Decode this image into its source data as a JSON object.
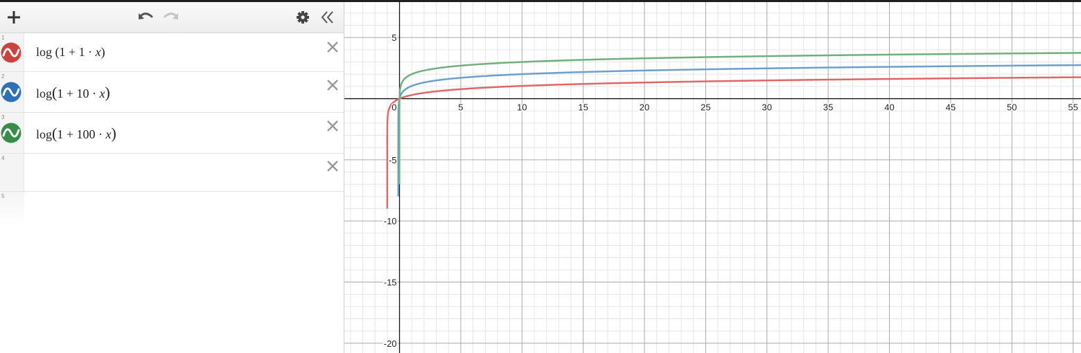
{
  "toolbar": {
    "add_icon": "plus-icon",
    "undo_icon": "undo-icon",
    "redo_icon": "redo-icon",
    "settings_icon": "gear-icon",
    "collapse_icon": "double-chevron-left-icon"
  },
  "expressions": [
    {
      "index": "1",
      "color": "#c74440",
      "func": "log",
      "left_paren": "(",
      "const": "1",
      "plus": "+",
      "coef": "1",
      "dot": "·",
      "var": "x",
      "right_paren": ")"
    },
    {
      "index": "2",
      "color": "#2d70b3",
      "func": "log",
      "left_paren": "(",
      "const": "1",
      "plus": "+",
      "coef": "10",
      "dot": "·",
      "var": "x",
      "right_paren": ")"
    },
    {
      "index": "3",
      "color": "#388c46",
      "func": "log",
      "left_paren": "(",
      "const": "1",
      "plus": "+",
      "coef": "100",
      "dot": "·",
      "var": "x",
      "right_paren": ")"
    },
    {
      "index": "4"
    },
    {
      "index": "5"
    }
  ],
  "chart_data": {
    "type": "line",
    "xlim": [
      -4.5,
      55.7
    ],
    "ylim": [
      -20.8,
      7.9
    ],
    "x_ticks": [
      "0",
      "5",
      "10",
      "15",
      "20",
      "25",
      "30",
      "35",
      "40",
      "45",
      "50",
      "55"
    ],
    "y_ticks": [
      "5",
      "-5",
      "-10",
      "-15",
      "-20"
    ],
    "grid": true,
    "series": [
      {
        "expression": "log(1 + 1·x)",
        "coef": 1,
        "color": "#e06666"
      },
      {
        "expression": "log(1 + 10·x)",
        "coef": 10,
        "color": "#6a9fd0"
      },
      {
        "expression": "log(1 + 100·x)",
        "coef": 100,
        "color": "#6fb07a"
      }
    ]
  }
}
